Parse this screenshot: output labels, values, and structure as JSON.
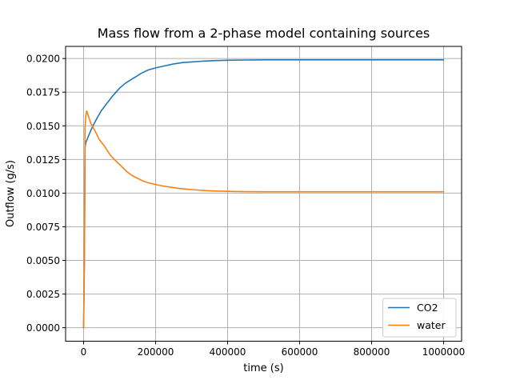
{
  "chart_data": {
    "type": "line",
    "title": "Mass flow from a 2-phase model containing sources",
    "xlabel": "time (s)",
    "ylabel": "Outflow (g/s)",
    "xlim": [
      -50000,
      1050000
    ],
    "ylim": [
      -0.001,
      0.0209
    ],
    "grid": true,
    "colors": {
      "grid": "#b0b0b0",
      "spine": "#000000",
      "background": "#ffffff"
    },
    "xticks": [
      0,
      200000,
      400000,
      600000,
      800000,
      1000000
    ],
    "xticklabels": [
      "0",
      "200000",
      "400000",
      "600000",
      "800000",
      "1000000"
    ],
    "yticks": [
      0.0,
      0.0025,
      0.005,
      0.0075,
      0.01,
      0.0125,
      0.015,
      0.0175,
      0.02
    ],
    "yticklabels": [
      "0.0000",
      "0.0025",
      "0.0050",
      "0.0075",
      "0.0100",
      "0.0125",
      "0.0150",
      "0.0175",
      "0.0200"
    ],
    "legend": {
      "position": "lower right",
      "entries": [
        "CO2",
        "water"
      ]
    },
    "series": [
      {
        "name": "CO2",
        "color": "#1f77b4",
        "points": [
          [
            0,
            0.0
          ],
          [
            2500,
            0.0055
          ],
          [
            4000,
            0.0134
          ],
          [
            6000,
            0.01375
          ],
          [
            10000,
            0.014
          ],
          [
            15000,
            0.01435
          ],
          [
            20000,
            0.01465
          ],
          [
            25000,
            0.01495
          ],
          [
            30000,
            0.0152
          ],
          [
            40000,
            0.0157
          ],
          [
            50000,
            0.01615
          ],
          [
            60000,
            0.0165
          ],
          [
            70000,
            0.01685
          ],
          [
            80000,
            0.0172
          ],
          [
            90000,
            0.0175
          ],
          [
            100000,
            0.0178
          ],
          [
            115000,
            0.01815
          ],
          [
            130000,
            0.0184
          ],
          [
            145000,
            0.01865
          ],
          [
            160000,
            0.0189
          ],
          [
            180000,
            0.01915
          ],
          [
            200000,
            0.0193
          ],
          [
            225000,
            0.01945
          ],
          [
            250000,
            0.0196
          ],
          [
            275000,
            0.0197
          ],
          [
            300000,
            0.01975
          ],
          [
            330000,
            0.0198
          ],
          [
            360000,
            0.01984
          ],
          [
            400000,
            0.01987
          ],
          [
            450000,
            0.01989
          ],
          [
            500000,
            0.0199
          ],
          [
            600000,
            0.0199
          ],
          [
            700000,
            0.0199
          ],
          [
            800000,
            0.0199
          ],
          [
            900000,
            0.0199
          ],
          [
            1000000,
            0.0199
          ]
        ]
      },
      {
        "name": "water",
        "color": "#ff7f0e",
        "points": [
          [
            0,
            0.0
          ],
          [
            2500,
            0.0055
          ],
          [
            4000,
            0.0148
          ],
          [
            6000,
            0.0157
          ],
          [
            8500,
            0.0161
          ],
          [
            10500,
            0.016
          ],
          [
            13000,
            0.01575
          ],
          [
            16000,
            0.0155
          ],
          [
            20000,
            0.0152
          ],
          [
            25000,
            0.01495
          ],
          [
            30000,
            0.0147
          ],
          [
            36000,
            0.0144
          ],
          [
            42000,
            0.01405
          ],
          [
            50000,
            0.01375
          ],
          [
            58000,
            0.0135
          ],
          [
            66000,
            0.01315
          ],
          [
            75000,
            0.0128
          ],
          [
            85000,
            0.0125
          ],
          [
            95000,
            0.01225
          ],
          [
            105000,
            0.012
          ],
          [
            120000,
            0.0116
          ],
          [
            135000,
            0.0113
          ],
          [
            150000,
            0.0111
          ],
          [
            165000,
            0.0109
          ],
          [
            180000,
            0.01077
          ],
          [
            200000,
            0.01064
          ],
          [
            220000,
            0.01053
          ],
          [
            240000,
            0.01045
          ],
          [
            260000,
            0.01037
          ],
          [
            280000,
            0.01031
          ],
          [
            300000,
            0.01026
          ],
          [
            330000,
            0.0102
          ],
          [
            360000,
            0.01016
          ],
          [
            400000,
            0.01013
          ],
          [
            450000,
            0.01011
          ],
          [
            500000,
            0.0101
          ],
          [
            600000,
            0.0101
          ],
          [
            700000,
            0.0101
          ],
          [
            800000,
            0.0101
          ],
          [
            900000,
            0.0101
          ],
          [
            1000000,
            0.0101
          ]
        ]
      }
    ]
  }
}
